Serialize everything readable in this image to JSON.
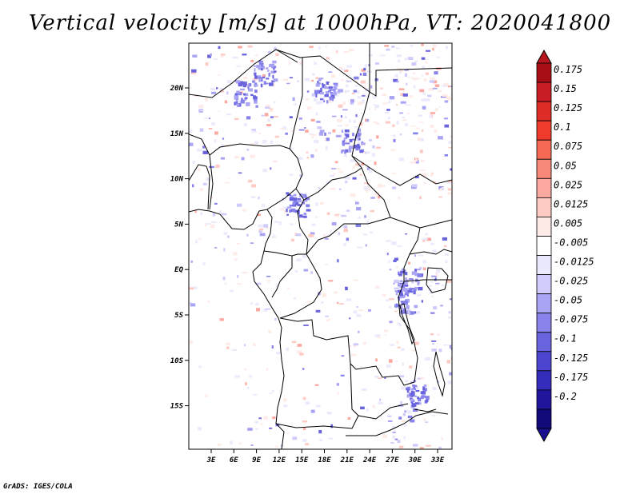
{
  "title": "Vertical velocity [m/s] at 1000hPa, VT: 2020041800",
  "credit": "GrADS: IGES/COLA",
  "map": {
    "lon_labels": [
      "3E",
      "6E",
      "9E",
      "12E",
      "15E",
      "18E",
      "21E",
      "24E",
      "27E",
      "30E",
      "33E"
    ],
    "lat_labels": [
      "20N",
      "15N",
      "10N",
      "5N",
      "EQ",
      "5S",
      "10S",
      "15S"
    ]
  },
  "colorbar": {
    "labels": [
      "0.175",
      "0.15",
      "0.125",
      "0.1",
      "0.075",
      "0.05",
      "0.025",
      "0.0125",
      "0.005",
      "-0.005",
      "-0.0125",
      "-0.025",
      "-0.05",
      "-0.075",
      "-0.1",
      "-0.125",
      "-0.175",
      "-0.2"
    ],
    "colors": [
      "#a50f15",
      "#c91d25",
      "#de2d26",
      "#ef3b2c",
      "#f46a55",
      "#f8887a",
      "#fba9a0",
      "#fdcbc4",
      "#feeae6",
      "#ffffff",
      "#ebeafd",
      "#cfccfb",
      "#a9a4f3",
      "#8883ea",
      "#6a63de",
      "#4d45cf",
      "#342cba",
      "#1f169c",
      "#100a7a"
    ],
    "top_arrow_color": "#b8161f",
    "bottom_arrow_color": "#1a0f8f"
  }
}
